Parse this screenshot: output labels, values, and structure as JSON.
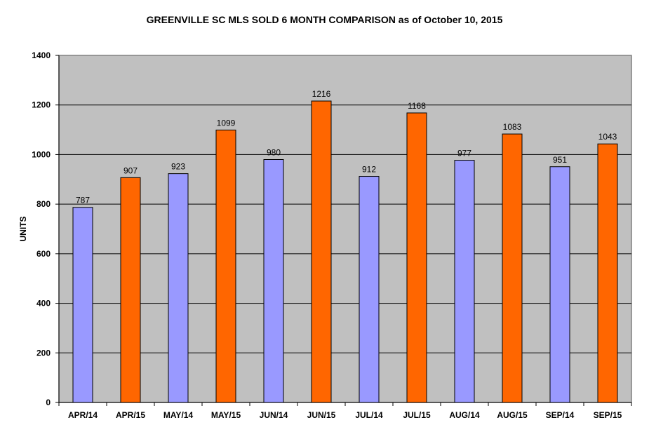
{
  "chart_data": {
    "type": "bar",
    "title": "GREENVILLE SC MLS SOLD 6 MONTH COMPARISON as of October 10, 2015",
    "xlabel": "",
    "ylabel": "UNITS",
    "ylim": [
      0,
      1400
    ],
    "yticks": [
      0,
      200,
      400,
      600,
      800,
      1000,
      1200,
      1400
    ],
    "grid": true,
    "categories": [
      "APR/14",
      "APR/15",
      "MAY/14",
      "MAY/15",
      "JUN/14",
      "JUN/15",
      "JUL/14",
      "JUL/15",
      "AUG/14",
      "AUG/15",
      "SEP/14",
      "SEP/15"
    ],
    "values": [
      787,
      907,
      923,
      1099,
      980,
      1216,
      912,
      1168,
      977,
      1083,
      951,
      1043
    ],
    "colors": [
      "#9999ff",
      "#ff6600"
    ],
    "plot_background": "#c0c0c0"
  }
}
